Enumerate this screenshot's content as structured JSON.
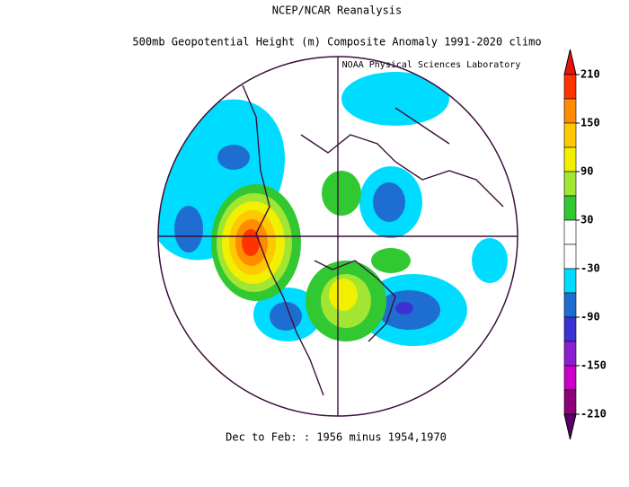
{
  "title": "NCEP/NCAR Reanalysis",
  "subtitle": "500mb Geopotential Height (m) Composite Anomaly 1991-2020 climo",
  "credit": "NOAA Physical Sciences Laboratory",
  "caption": "Dec to Feb: : 1956 minus 1954,1970",
  "colorbar": {
    "ticks": [
      210,
      150,
      90,
      30,
      -30,
      -90,
      -150,
      -210
    ],
    "over_color": "#e8140c",
    "under_color": "#5a0064",
    "colors": [
      "#ff3200",
      "#ff8c00",
      "#ffc800",
      "#f0f000",
      "#a0e632",
      "#32c832",
      "#ffffff",
      "#ffffff",
      "#00dcff",
      "#1e6ed2",
      "#3c32d2",
      "#8c1ed2",
      "#c800c8",
      "#8c0078"
    ]
  }
}
